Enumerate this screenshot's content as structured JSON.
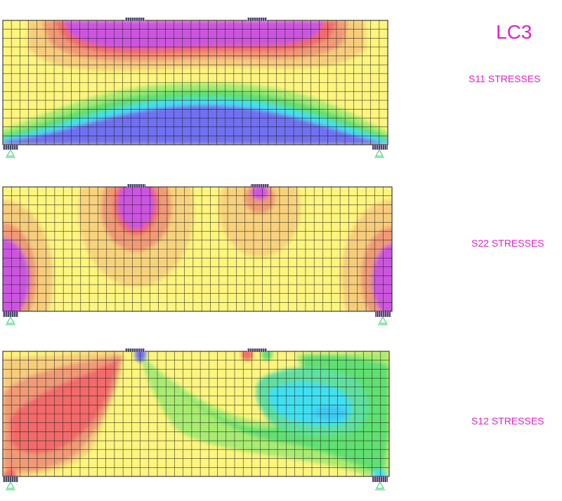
{
  "load_case": "LC3",
  "panels": [
    {
      "id": "s11",
      "label": "S11 STRESSES"
    },
    {
      "id": "s22",
      "label": "S22 STRESSES"
    },
    {
      "id": "s12",
      "label": "S12 STRESSES"
    }
  ],
  "colors": {
    "label": "#e020d0",
    "mesh_line": "#1a1a1a",
    "support": "#2ecc71",
    "contour_scale": [
      "#7070f0",
      "#40e0f0",
      "#60e070",
      "#a8ec70",
      "#fdf57e",
      "#f7cd7c",
      "#f19a76",
      "#f26b6b",
      "#cc55e0"
    ]
  }
}
